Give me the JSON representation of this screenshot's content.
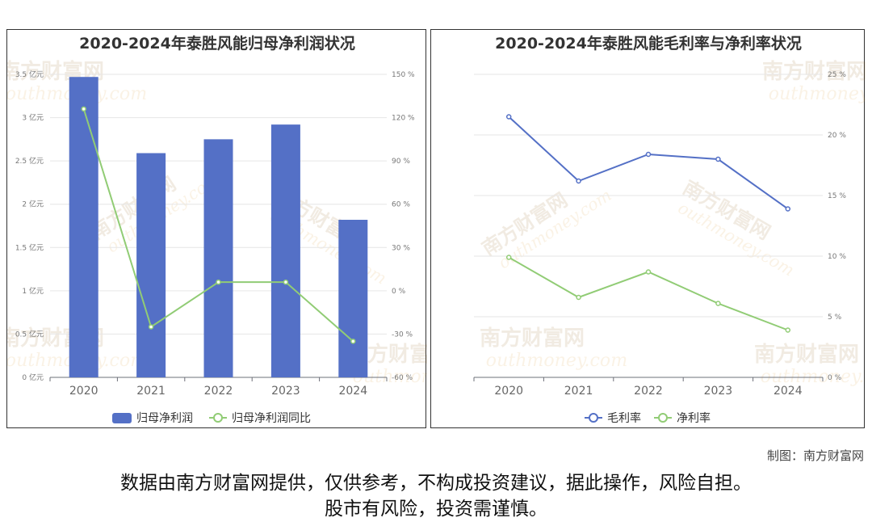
{
  "watermark": "南方财富网",
  "watermark_en": "outhmoney.com",
  "footer": {
    "credit": "制图：南方财富网",
    "disclaimer_line1": "数据由南方财富网提供，仅供参考，不构成投资建议，据此操作，风险自担。",
    "disclaimer_line2": "股市有风险，投资需谨慎。"
  },
  "chart_data": [
    {
      "type": "bar",
      "title": "2020-2024年泰胜风能归母净利润状况",
      "categories": [
        "2020",
        "2021",
        "2022",
        "2023",
        "2024"
      ],
      "series": [
        {
          "name": "归母净利润",
          "type": "bar",
          "axis": "left",
          "values": [
            3.47,
            2.59,
            2.75,
            2.92,
            1.82
          ],
          "color": "#5470c6"
        },
        {
          "name": "归母净利润同比",
          "type": "line",
          "axis": "right",
          "values": [
            126,
            -25,
            6,
            6,
            -35
          ],
          "color": "#91cc75"
        }
      ],
      "y_left": {
        "ticks": [
          0,
          0.5,
          1,
          1.5,
          2,
          2.5,
          3,
          3.5
        ],
        "tick_labels": [
          "0 亿元",
          "0.5 亿元",
          "1 亿元",
          "1.5 亿元",
          "2 亿元",
          "2.5 亿元",
          "3 亿元",
          "3.5 亿元"
        ],
        "ylim": [
          0,
          3.5
        ]
      },
      "y_right": {
        "ticks": [
          -60,
          -30,
          0,
          30,
          60,
          90,
          120,
          150
        ],
        "tick_labels": [
          "-60 %",
          "-30 %",
          "0 %",
          "30 %",
          "60 %",
          "90 %",
          "120 %",
          "150 %"
        ],
        "ylim": [
          -60,
          150
        ]
      },
      "grid": true,
      "legend": "bottom"
    },
    {
      "type": "line",
      "title": "2020-2024年泰胜风能毛利率与净利率状况",
      "categories": [
        "2020",
        "2021",
        "2022",
        "2023",
        "2024"
      ],
      "series": [
        {
          "name": "毛利率",
          "values": [
            21.5,
            16.2,
            18.4,
            18.0,
            13.9
          ],
          "color": "#5470c6"
        },
        {
          "name": "净利率",
          "values": [
            9.9,
            6.6,
            8.7,
            6.1,
            3.9
          ],
          "color": "#91cc75"
        }
      ],
      "y_right": {
        "ticks": [
          0,
          5,
          10,
          15,
          20,
          25
        ],
        "tick_labels": [
          "0 %",
          "5 %",
          "10 %",
          "15 %",
          "20 %",
          "25 %"
        ],
        "ylim": [
          0,
          25
        ]
      },
      "grid": true,
      "legend": "bottom"
    }
  ]
}
